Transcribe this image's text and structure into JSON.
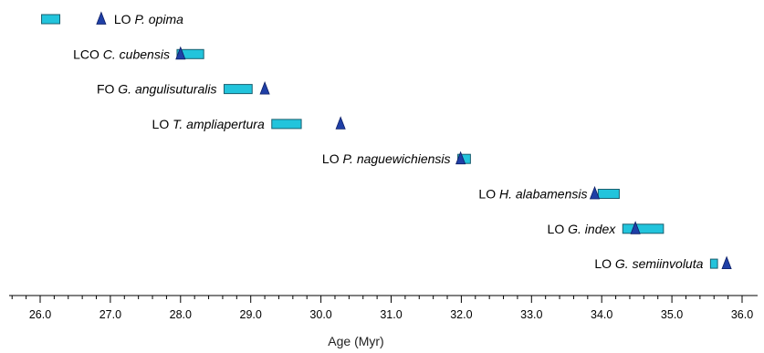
{
  "chart_data": {
    "type": "scatter",
    "title": "",
    "xlabel": "Age (Myr)",
    "ylabel": "",
    "xlim": [
      25.6,
      36.0
    ],
    "major_ticks": [
      26.0,
      27.0,
      28.0,
      29.0,
      30.0,
      31.0,
      32.0,
      33.0,
      34.0,
      35.0,
      36.0
    ],
    "tick_labels": [
      "26.0",
      "27.0",
      "28.0",
      "29.0",
      "30.0",
      "31.0",
      "32.0",
      "33.0",
      "34.0",
      "35.0",
      "36.0"
    ],
    "minor_tick_step": 0.2,
    "grid": false,
    "colors": {
      "range_fill": "#22c4dc",
      "range_stroke": "#1a5f6f",
      "marker_fill": "#1f3fa6",
      "marker_stroke": "#0d1f66"
    },
    "events": [
      {
        "prefix": "LO",
        "species": "P. opima",
        "range": [
          26.02,
          26.28
        ],
        "marker": 26.87
      },
      {
        "prefix": "LCO",
        "species": "C. cubensis",
        "range": [
          27.95,
          28.33
        ],
        "marker": 28.0
      },
      {
        "prefix": "FO",
        "species": "G. angulisuturalis",
        "range": [
          28.62,
          29.02
        ],
        "marker": 29.2
      },
      {
        "prefix": "LO",
        "species": "T. ampliapertura",
        "range": [
          29.3,
          29.72
        ],
        "marker": 30.28
      },
      {
        "prefix": "LO",
        "species": "P. naguewichiensis",
        "range": [
          31.95,
          32.13
        ],
        "marker": 31.99
      },
      {
        "prefix": "LO",
        "species": "H. alabamensis",
        "range": [
          33.95,
          34.25
        ],
        "marker": 33.9
      },
      {
        "prefix": "LO",
        "species": "G. index",
        "range": [
          34.3,
          34.88
        ],
        "marker": 34.48
      },
      {
        "prefix": "LO",
        "species": "G. semiinvoluta",
        "range": [
          35.55,
          35.65
        ],
        "marker": 35.78
      }
    ]
  }
}
